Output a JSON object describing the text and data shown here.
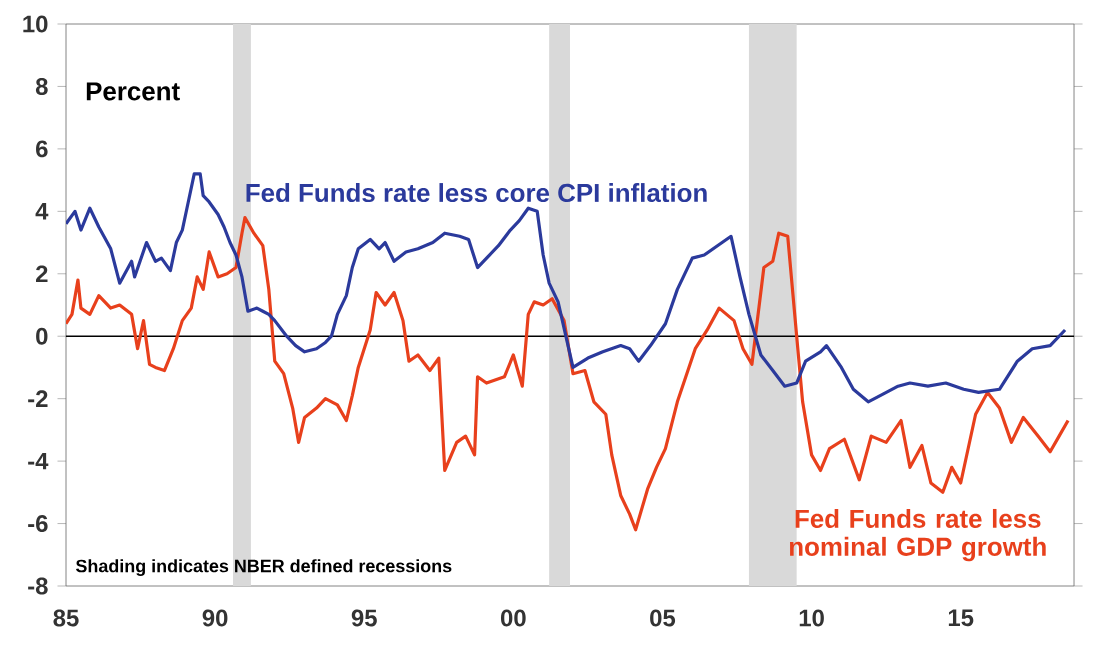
{
  "chart_data": {
    "type": "line",
    "ylabel": "Percent",
    "annotations": [
      "Shading indicates NBER defined recessions"
    ],
    "xlim": [
      1985,
      2018.8
    ],
    "ylim": [
      -8,
      10
    ],
    "xticks": [
      {
        "value": 1985,
        "label": "85"
      },
      {
        "value": 1990,
        "label": "90"
      },
      {
        "value": 1995,
        "label": "95"
      },
      {
        "value": 2000,
        "label": "00"
      },
      {
        "value": 2005,
        "label": "05"
      },
      {
        "value": 2010,
        "label": "10"
      },
      {
        "value": 2015,
        "label": "15"
      }
    ],
    "yticks": [
      -8,
      -6,
      -4,
      -2,
      0,
      2,
      4,
      6,
      8,
      10
    ],
    "grid": false,
    "marker": "none",
    "line_style": "solid",
    "ref_lines": [
      {
        "axis": "y",
        "value": 0,
        "color": "#000000"
      }
    ],
    "bands": [
      {
        "axis": "x",
        "from": 1990.6,
        "to": 1991.2,
        "color": "#d9d9d9"
      },
      {
        "axis": "x",
        "from": 2001.2,
        "to": 2001.9,
        "color": "#d9d9d9"
      },
      {
        "axis": "x",
        "from": 2007.9,
        "to": 2009.5,
        "color": "#d9d9d9"
      }
    ],
    "series": [
      {
        "name": "Fed Funds rate less nominal GDP growth",
        "color": "#e8401c",
        "x": [
          1985.0,
          1985.2,
          1985.4,
          1985.5,
          1985.8,
          1986.1,
          1986.5,
          1986.8,
          1987.2,
          1987.4,
          1987.6,
          1987.8,
          1988.0,
          1988.3,
          1988.6,
          1988.9,
          1989.2,
          1989.4,
          1989.6,
          1989.8,
          1990.1,
          1990.4,
          1990.7,
          1990.9,
          1991.0,
          1991.3,
          1991.6,
          1991.8,
          1992.0,
          1992.3,
          1992.6,
          1992.8,
          1993.0,
          1993.4,
          1993.7,
          1994.1,
          1994.4,
          1994.6,
          1994.8,
          1995.2,
          1995.4,
          1995.7,
          1996.0,
          1996.3,
          1996.5,
          1996.8,
          1997.2,
          1997.5,
          1997.7,
          1998.1,
          1998.4,
          1998.7,
          1998.8,
          1999.1,
          1999.7,
          2000.0,
          2000.3,
          2000.5,
          2000.7,
          2001.0,
          2001.3,
          2001.7,
          2002.0,
          2002.4,
          2002.7,
          2003.1,
          2003.3,
          2003.6,
          2003.9,
          2004.1,
          2004.5,
          2004.8,
          2005.1,
          2005.5,
          2006.1,
          2006.5,
          2006.9,
          2007.4,
          2007.7,
          2008.0,
          2008.4,
          2008.7,
          2008.9,
          2009.2,
          2009.5,
          2009.7,
          2010.0,
          2010.3,
          2010.6,
          2011.1,
          2011.6,
          2012.0,
          2012.5,
          2013.0,
          2013.3,
          2013.7,
          2014.0,
          2014.4,
          2014.7,
          2015.0,
          2015.5,
          2015.9,
          2016.3,
          2016.7,
          2017.1,
          2017.6,
          2018.0,
          2018.3,
          2018.6
        ],
        "values": [
          0.4,
          0.7,
          1.8,
          0.9,
          0.7,
          1.3,
          0.9,
          1.0,
          0.7,
          -0.4,
          0.5,
          -0.9,
          -1.0,
          -1.1,
          -0.4,
          0.5,
          0.9,
          1.9,
          1.5,
          2.7,
          1.9,
          2.0,
          2.2,
          3.3,
          3.8,
          3.3,
          2.9,
          1.5,
          -0.8,
          -1.2,
          -2.3,
          -3.4,
          -2.6,
          -2.3,
          -2.0,
          -2.2,
          -2.7,
          -1.9,
          -1.0,
          0.2,
          1.4,
          1.0,
          1.4,
          0.5,
          -0.8,
          -0.6,
          -1.1,
          -0.7,
          -4.3,
          -3.4,
          -3.2,
          -3.8,
          -1.3,
          -1.5,
          -1.3,
          -0.6,
          -1.6,
          0.7,
          1.1,
          1.0,
          1.2,
          0.5,
          -1.2,
          -1.1,
          -2.1,
          -2.5,
          -3.8,
          -5.1,
          -5.7,
          -6.2,
          -4.9,
          -4.2,
          -3.6,
          -2.1,
          -0.4,
          0.2,
          0.9,
          0.5,
          -0.4,
          -0.9,
          2.2,
          2.4,
          3.3,
          3.2,
          0.0,
          -2.1,
          -3.8,
          -4.3,
          -3.6,
          -3.3,
          -4.6,
          -3.2,
          -3.4,
          -2.7,
          -4.2,
          -3.5,
          -4.7,
          -5.0,
          -4.2,
          -4.7,
          -2.5,
          -1.8,
          -2.3,
          -3.4,
          -2.6,
          -3.2,
          -3.7,
          -3.2,
          -2.7
        ]
      },
      {
        "name": "Fed Funds rate less core CPI inflation",
        "color": "#2b3a9c",
        "x": [
          1985.0,
          1985.3,
          1985.5,
          1985.8,
          1986.1,
          1986.5,
          1986.8,
          1987.2,
          1987.3,
          1987.7,
          1988.0,
          1988.2,
          1988.5,
          1988.7,
          1988.9,
          1989.1,
          1989.3,
          1989.5,
          1989.6,
          1989.8,
          1990.1,
          1990.3,
          1990.5,
          1990.7,
          1990.9,
          1991.1,
          1991.4,
          1991.6,
          1991.8,
          1992.0,
          1992.4,
          1992.7,
          1993.0,
          1993.4,
          1993.7,
          1993.9,
          1994.1,
          1994.4,
          1994.6,
          1994.8,
          1995.2,
          1995.5,
          1995.7,
          1996.0,
          1996.4,
          1996.8,
          1997.3,
          1997.7,
          1998.2,
          1998.5,
          1998.8,
          1999.2,
          1999.5,
          1999.9,
          2000.2,
          2000.5,
          2000.8,
          2001.0,
          2001.2,
          2001.5,
          2002.0,
          2002.5,
          2003.0,
          2003.6,
          2003.9,
          2004.2,
          2004.6,
          2005.1,
          2005.5,
          2006.0,
          2006.4,
          2006.7,
          2007.0,
          2007.3,
          2007.6,
          2007.9,
          2008.3,
          2008.7,
          2009.1,
          2009.5,
          2009.8,
          2010.3,
          2010.5,
          2011.0,
          2011.4,
          2011.9,
          2012.3,
          2012.9,
          2013.3,
          2013.9,
          2014.5,
          2015.1,
          2015.6,
          2016.3,
          2016.9,
          2017.4,
          2018.0,
          2018.5
        ],
        "values": [
          3.6,
          4.0,
          3.4,
          4.1,
          3.5,
          2.8,
          1.7,
          2.4,
          1.9,
          3.0,
          2.4,
          2.5,
          2.1,
          3.0,
          3.4,
          4.3,
          5.2,
          5.2,
          4.5,
          4.3,
          3.9,
          3.5,
          3.0,
          2.6,
          1.9,
          0.8,
          0.9,
          0.8,
          0.7,
          0.5,
          0.0,
          -0.3,
          -0.5,
          -0.4,
          -0.2,
          0.0,
          0.7,
          1.3,
          2.2,
          2.8,
          3.1,
          2.8,
          3.0,
          2.4,
          2.7,
          2.8,
          3.0,
          3.3,
          3.2,
          3.1,
          2.2,
          2.6,
          2.9,
          3.4,
          3.7,
          4.1,
          4.0,
          2.6,
          1.7,
          1.1,
          -1.0,
          -0.7,
          -0.5,
          -0.3,
          -0.4,
          -0.8,
          -0.3,
          0.4,
          1.5,
          2.5,
          2.6,
          2.8,
          3.0,
          3.2,
          1.9,
          0.7,
          -0.6,
          -1.1,
          -1.6,
          -1.5,
          -0.8,
          -0.5,
          -0.3,
          -1.0,
          -1.7,
          -2.1,
          -1.9,
          -1.6,
          -1.5,
          -1.6,
          -1.5,
          -1.7,
          -1.8,
          -1.7,
          -0.8,
          -0.4,
          -0.3,
          0.2
        ]
      }
    ]
  }
}
